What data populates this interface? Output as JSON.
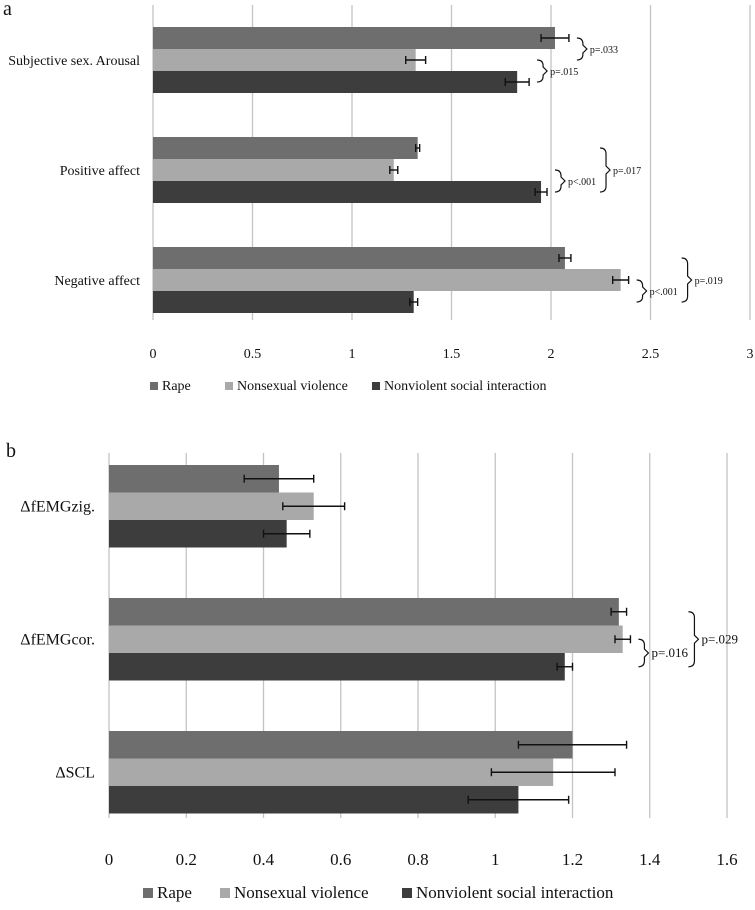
{
  "chart_data": [
    {
      "type": "bar",
      "orientation": "horizontal",
      "panel_label": "a",
      "categories": [
        "Subjective sex. Arousal",
        "Positive affect",
        "Negative affect"
      ],
      "series": [
        {
          "name": "Rape",
          "color": "#6e6e6e",
          "values": [
            2.02,
            1.33,
            2.07
          ],
          "errors": [
            0.07,
            0.01,
            0.03
          ]
        },
        {
          "name": "Nonsexual violence",
          "color": "#a9a9a9",
          "values": [
            1.32,
            1.21,
            2.35
          ],
          "errors": [
            0.05,
            0.02,
            0.04
          ]
        },
        {
          "name": "Nonviolent social interaction",
          "color": "#3d3d3d",
          "values": [
            1.83,
            1.95,
            1.31
          ],
          "errors": [
            0.06,
            0.03,
            0.02
          ]
        }
      ],
      "xlim": [
        0,
        3
      ],
      "xticks": [
        0,
        0.5,
        1,
        1.5,
        2,
        2.5,
        3
      ],
      "xtick_labels": [
        "0",
        "0.5",
        "1",
        "1.5",
        "2",
        "2.5",
        "3"
      ],
      "annotations": [
        {
          "category": 0,
          "from": 0,
          "to": 1,
          "text": "p=.033"
        },
        {
          "category": 0,
          "from": 1,
          "to": 2,
          "text": "p=.015"
        },
        {
          "category": 1,
          "from": 0,
          "to": 2,
          "text": "p=.017"
        },
        {
          "category": 1,
          "from": 1,
          "to": 2,
          "text": "p<.001"
        },
        {
          "category": 2,
          "from": 0,
          "to": 2,
          "text": "p=.019"
        },
        {
          "category": 2,
          "from": 1,
          "to": 2,
          "text": "p<.001"
        }
      ],
      "grid": true,
      "legend": "bottom"
    },
    {
      "type": "bar",
      "orientation": "horizontal",
      "panel_label": "b",
      "categories": [
        "ΔfEMGzig.",
        "ΔfEMGcor.",
        "ΔSCL"
      ],
      "series": [
        {
          "name": "Rape",
          "color": "#6e6e6e",
          "values": [
            0.44,
            1.32,
            1.2
          ],
          "errors": [
            0.09,
            0.02,
            0.14
          ]
        },
        {
          "name": "Nonsexual violence",
          "color": "#a9a9a9",
          "values": [
            0.53,
            1.33,
            1.15
          ],
          "errors": [
            0.08,
            0.02,
            0.16
          ]
        },
        {
          "name": "Nonviolent social interaction",
          "color": "#3d3d3d",
          "values": [
            0.46,
            1.18,
            1.06
          ],
          "errors": [
            0.06,
            0.02,
            0.13
          ]
        }
      ],
      "xlim": [
        0,
        1.6
      ],
      "xticks": [
        0,
        0.2,
        0.4,
        0.6,
        0.8,
        1,
        1.2,
        1.4,
        1.6
      ],
      "xtick_labels": [
        "0",
        "0.2",
        "0.4",
        "0.6",
        "0.8",
        "1",
        "1.2",
        "1.4",
        "1.6"
      ],
      "annotations": [
        {
          "category": 1,
          "from": 1,
          "to": 2,
          "text": "p=.016"
        },
        {
          "category": 1,
          "from": 0,
          "to": 2,
          "text": "p=.029"
        }
      ],
      "grid": true,
      "legend": "bottom"
    }
  ]
}
